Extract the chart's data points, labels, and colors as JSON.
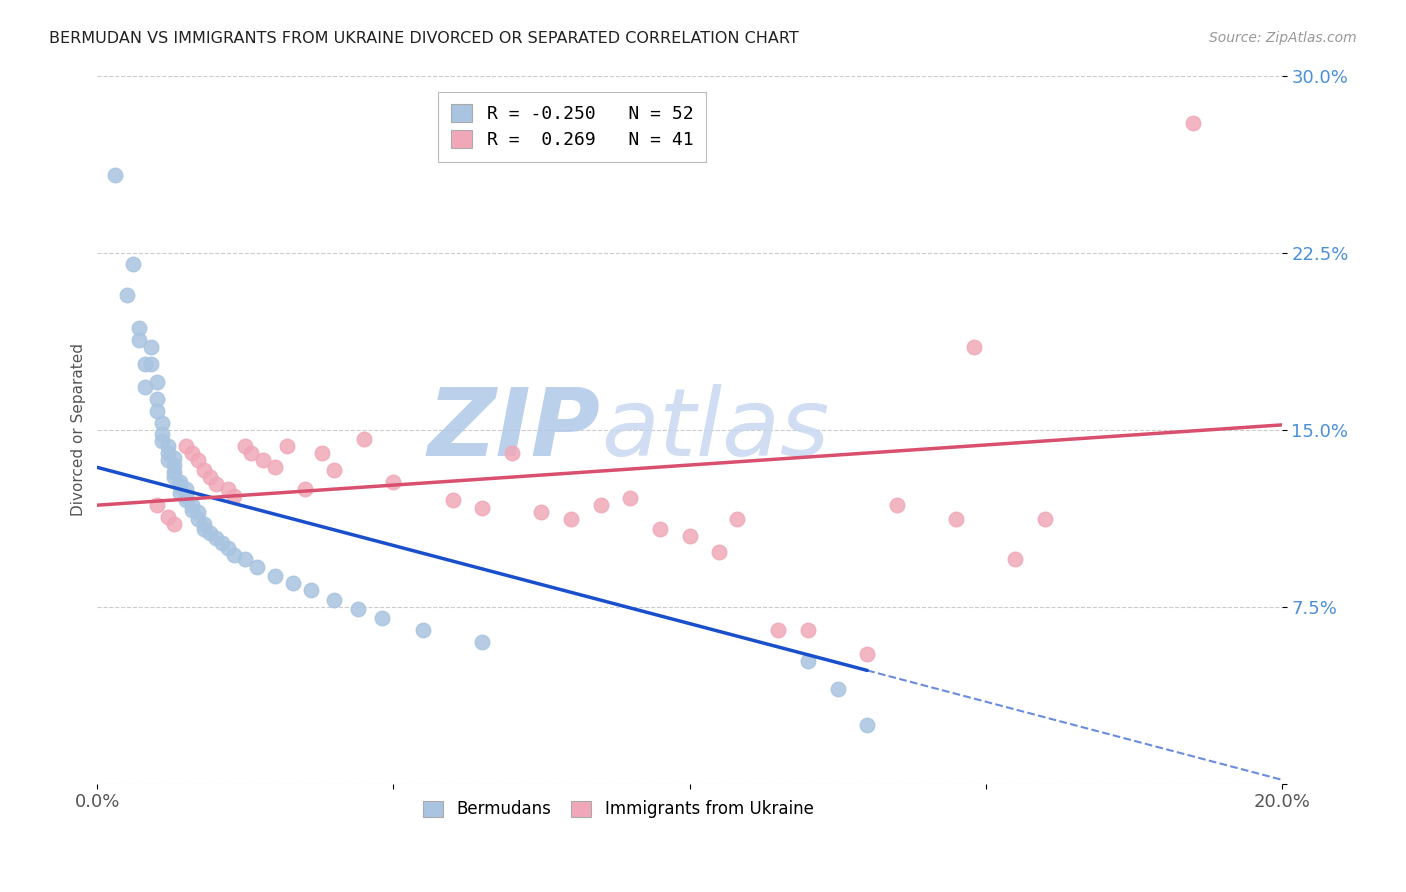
{
  "title": "BERMUDAN VS IMMIGRANTS FROM UKRAINE DIVORCED OR SEPARATED CORRELATION CHART",
  "source": "Source: ZipAtlas.com",
  "ylabel": "Divorced or Separated",
  "xlim": [
    0.0,
    0.2
  ],
  "ylim": [
    0.0,
    0.3
  ],
  "yticks": [
    0.0,
    0.075,
    0.15,
    0.225,
    0.3
  ],
  "ytick_labels": [
    "",
    "7.5%",
    "15.0%",
    "22.5%",
    "30.0%"
  ],
  "xticks": [
    0.0,
    0.05,
    0.1,
    0.15,
    0.2
  ],
  "xtick_labels": [
    "0.0%",
    "",
    "",
    "",
    "20.0%"
  ],
  "legend_blue_r": "-0.250",
  "legend_blue_n": "52",
  "legend_pink_r": "0.269",
  "legend_pink_n": "41",
  "blue_scatter_color": "#a8c4e0",
  "pink_scatter_color": "#f0a8b8",
  "blue_line_color": "#1a4fcc",
  "pink_line_color": "#d94f6e",
  "watermark_color": "#c8d8f0",
  "background_color": "#ffffff",
  "grid_color": "#cccccc",
  "ytick_color": "#4a90d9",
  "blue_scatter": [
    [
      0.003,
      0.258
    ],
    [
      0.005,
      0.207
    ],
    [
      0.006,
      0.22
    ],
    [
      0.007,
      0.193
    ],
    [
      0.007,
      0.188
    ],
    [
      0.008,
      0.178
    ],
    [
      0.008,
      0.168
    ],
    [
      0.009,
      0.185
    ],
    [
      0.009,
      0.178
    ],
    [
      0.01,
      0.17
    ],
    [
      0.01,
      0.163
    ],
    [
      0.01,
      0.158
    ],
    [
      0.011,
      0.153
    ],
    [
      0.011,
      0.148
    ],
    [
      0.011,
      0.145
    ],
    [
      0.012,
      0.143
    ],
    [
      0.012,
      0.14
    ],
    [
      0.012,
      0.137
    ],
    [
      0.013,
      0.138
    ],
    [
      0.013,
      0.135
    ],
    [
      0.013,
      0.132
    ],
    [
      0.013,
      0.13
    ],
    [
      0.014,
      0.128
    ],
    [
      0.014,
      0.126
    ],
    [
      0.014,
      0.123
    ],
    [
      0.015,
      0.125
    ],
    [
      0.015,
      0.122
    ],
    [
      0.015,
      0.12
    ],
    [
      0.016,
      0.118
    ],
    [
      0.016,
      0.116
    ],
    [
      0.017,
      0.115
    ],
    [
      0.017,
      0.112
    ],
    [
      0.018,
      0.11
    ],
    [
      0.018,
      0.108
    ],
    [
      0.019,
      0.106
    ],
    [
      0.02,
      0.104
    ],
    [
      0.021,
      0.102
    ],
    [
      0.022,
      0.1
    ],
    [
      0.023,
      0.097
    ],
    [
      0.025,
      0.095
    ],
    [
      0.027,
      0.092
    ],
    [
      0.03,
      0.088
    ],
    [
      0.033,
      0.085
    ],
    [
      0.036,
      0.082
    ],
    [
      0.04,
      0.078
    ],
    [
      0.044,
      0.074
    ],
    [
      0.048,
      0.07
    ],
    [
      0.055,
      0.065
    ],
    [
      0.065,
      0.06
    ],
    [
      0.12,
      0.052
    ],
    [
      0.125,
      0.04
    ],
    [
      0.13,
      0.025
    ]
  ],
  "pink_scatter": [
    [
      0.01,
      0.118
    ],
    [
      0.012,
      0.113
    ],
    [
      0.013,
      0.11
    ],
    [
      0.015,
      0.143
    ],
    [
      0.016,
      0.14
    ],
    [
      0.017,
      0.137
    ],
    [
      0.018,
      0.133
    ],
    [
      0.019,
      0.13
    ],
    [
      0.02,
      0.127
    ],
    [
      0.022,
      0.125
    ],
    [
      0.023,
      0.122
    ],
    [
      0.025,
      0.143
    ],
    [
      0.026,
      0.14
    ],
    [
      0.028,
      0.137
    ],
    [
      0.03,
      0.134
    ],
    [
      0.032,
      0.143
    ],
    [
      0.035,
      0.125
    ],
    [
      0.038,
      0.14
    ],
    [
      0.04,
      0.133
    ],
    [
      0.045,
      0.146
    ],
    [
      0.05,
      0.128
    ],
    [
      0.06,
      0.12
    ],
    [
      0.065,
      0.117
    ],
    [
      0.07,
      0.14
    ],
    [
      0.075,
      0.115
    ],
    [
      0.08,
      0.112
    ],
    [
      0.085,
      0.118
    ],
    [
      0.09,
      0.121
    ],
    [
      0.095,
      0.108
    ],
    [
      0.1,
      0.105
    ],
    [
      0.105,
      0.098
    ],
    [
      0.108,
      0.112
    ],
    [
      0.115,
      0.065
    ],
    [
      0.12,
      0.065
    ],
    [
      0.13,
      0.055
    ],
    [
      0.135,
      0.118
    ],
    [
      0.145,
      0.112
    ],
    [
      0.148,
      0.185
    ],
    [
      0.155,
      0.095
    ],
    [
      0.16,
      0.112
    ],
    [
      0.185,
      0.28
    ]
  ],
  "blue_line_x_start": 0.0,
  "blue_line_x_solid_end": 0.13,
  "blue_line_x_dash_end": 0.2,
  "blue_line_y_start": 0.134,
  "blue_line_y_solid_end": 0.048,
  "pink_line_x_start": 0.0,
  "pink_line_x_end": 0.2,
  "pink_line_y_start": 0.118,
  "pink_line_y_end": 0.152
}
